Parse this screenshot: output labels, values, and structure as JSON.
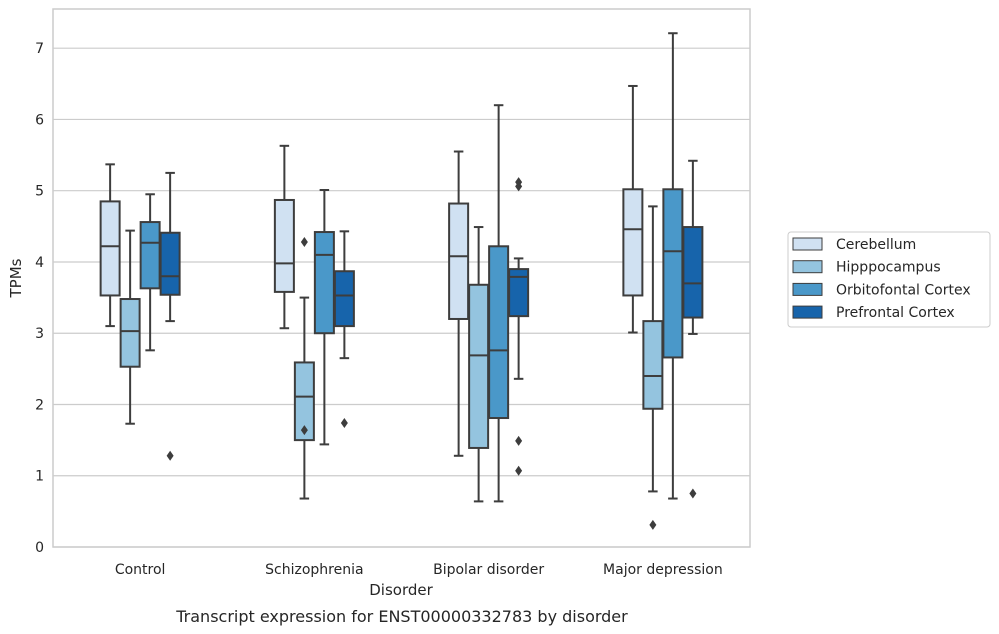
{
  "caption": "Transcript expression for ENST00000332783 by disorder",
  "chart_data": {
    "type": "boxplot",
    "title": "",
    "xlabel": "Disorder",
    "ylabel": "TPMs",
    "ylim": [
      0,
      7.55
    ],
    "yticks": [
      0,
      1,
      2,
      3,
      4,
      5,
      6,
      7
    ],
    "grid": "horizontal",
    "legend_position": "right",
    "categories": [
      "Control",
      "Schizophrenia",
      "Bipolar disorder",
      "Major depression"
    ],
    "series": [
      {
        "name": "Cerebellum",
        "color": "#d0e1f2",
        "boxes": [
          {
            "whisker_low": 3.1,
            "q1": 3.53,
            "median": 4.22,
            "q3": 4.85,
            "whisker_high": 5.37,
            "outliers": []
          },
          {
            "whisker_low": 3.07,
            "q1": 3.58,
            "median": 3.98,
            "q3": 4.87,
            "whisker_high": 5.63,
            "outliers": []
          },
          {
            "whisker_low": 1.28,
            "q1": 3.2,
            "median": 4.08,
            "q3": 4.82,
            "whisker_high": 5.55,
            "outliers": []
          },
          {
            "whisker_low": 3.01,
            "q1": 3.53,
            "median": 4.46,
            "q3": 5.02,
            "whisker_high": 6.47,
            "outliers": []
          }
        ]
      },
      {
        "name": "Hipppocampus",
        "color": "#94c4df",
        "boxes": [
          {
            "whisker_low": 1.73,
            "q1": 2.53,
            "median": 3.03,
            "q3": 3.48,
            "whisker_high": 4.44,
            "outliers": []
          },
          {
            "whisker_low": 0.68,
            "q1": 1.5,
            "median": 2.11,
            "q3": 2.59,
            "whisker_high": 3.5,
            "outliers": [
              1.64,
              4.28
            ]
          },
          {
            "whisker_low": 0.64,
            "q1": 1.39,
            "median": 2.69,
            "q3": 3.68,
            "whisker_high": 4.49,
            "outliers": []
          },
          {
            "whisker_low": 0.78,
            "q1": 1.94,
            "median": 2.4,
            "q3": 3.17,
            "whisker_high": 4.78,
            "outliers": [
              0.31
            ]
          }
        ]
      },
      {
        "name": "Orbitofontal Cortex",
        "color": "#4a98c9",
        "boxes": [
          {
            "whisker_low": 2.76,
            "q1": 3.63,
            "median": 4.27,
            "q3": 4.56,
            "whisker_high": 4.95,
            "outliers": []
          },
          {
            "whisker_low": 1.44,
            "q1": 3.0,
            "median": 4.1,
            "q3": 4.42,
            "whisker_high": 5.01,
            "outliers": []
          },
          {
            "whisker_low": 0.64,
            "q1": 1.81,
            "median": 2.76,
            "q3": 4.22,
            "whisker_high": 6.2,
            "outliers": []
          },
          {
            "whisker_low": 0.68,
            "q1": 2.66,
            "median": 4.15,
            "q3": 5.02,
            "whisker_high": 7.21,
            "outliers": []
          }
        ]
      },
      {
        "name": "Prefrontal Cortex",
        "color": "#1764ab",
        "boxes": [
          {
            "whisker_low": 3.17,
            "q1": 3.54,
            "median": 3.8,
            "q3": 4.41,
            "whisker_high": 5.25,
            "outliers": [
              1.28
            ]
          },
          {
            "whisker_low": 2.65,
            "q1": 3.1,
            "median": 3.53,
            "q3": 3.87,
            "whisker_high": 4.43,
            "outliers": [
              1.74
            ]
          },
          {
            "whisker_low": 2.36,
            "q1": 3.24,
            "median": 3.79,
            "q3": 3.9,
            "whisker_high": 4.05,
            "outliers": [
              1.07,
              1.49,
              5.06,
              5.12
            ]
          },
          {
            "whisker_low": 2.99,
            "q1": 3.22,
            "median": 3.7,
            "q3": 4.49,
            "whisker_high": 5.42,
            "outliers": [
              0.75
            ]
          }
        ]
      }
    ]
  }
}
